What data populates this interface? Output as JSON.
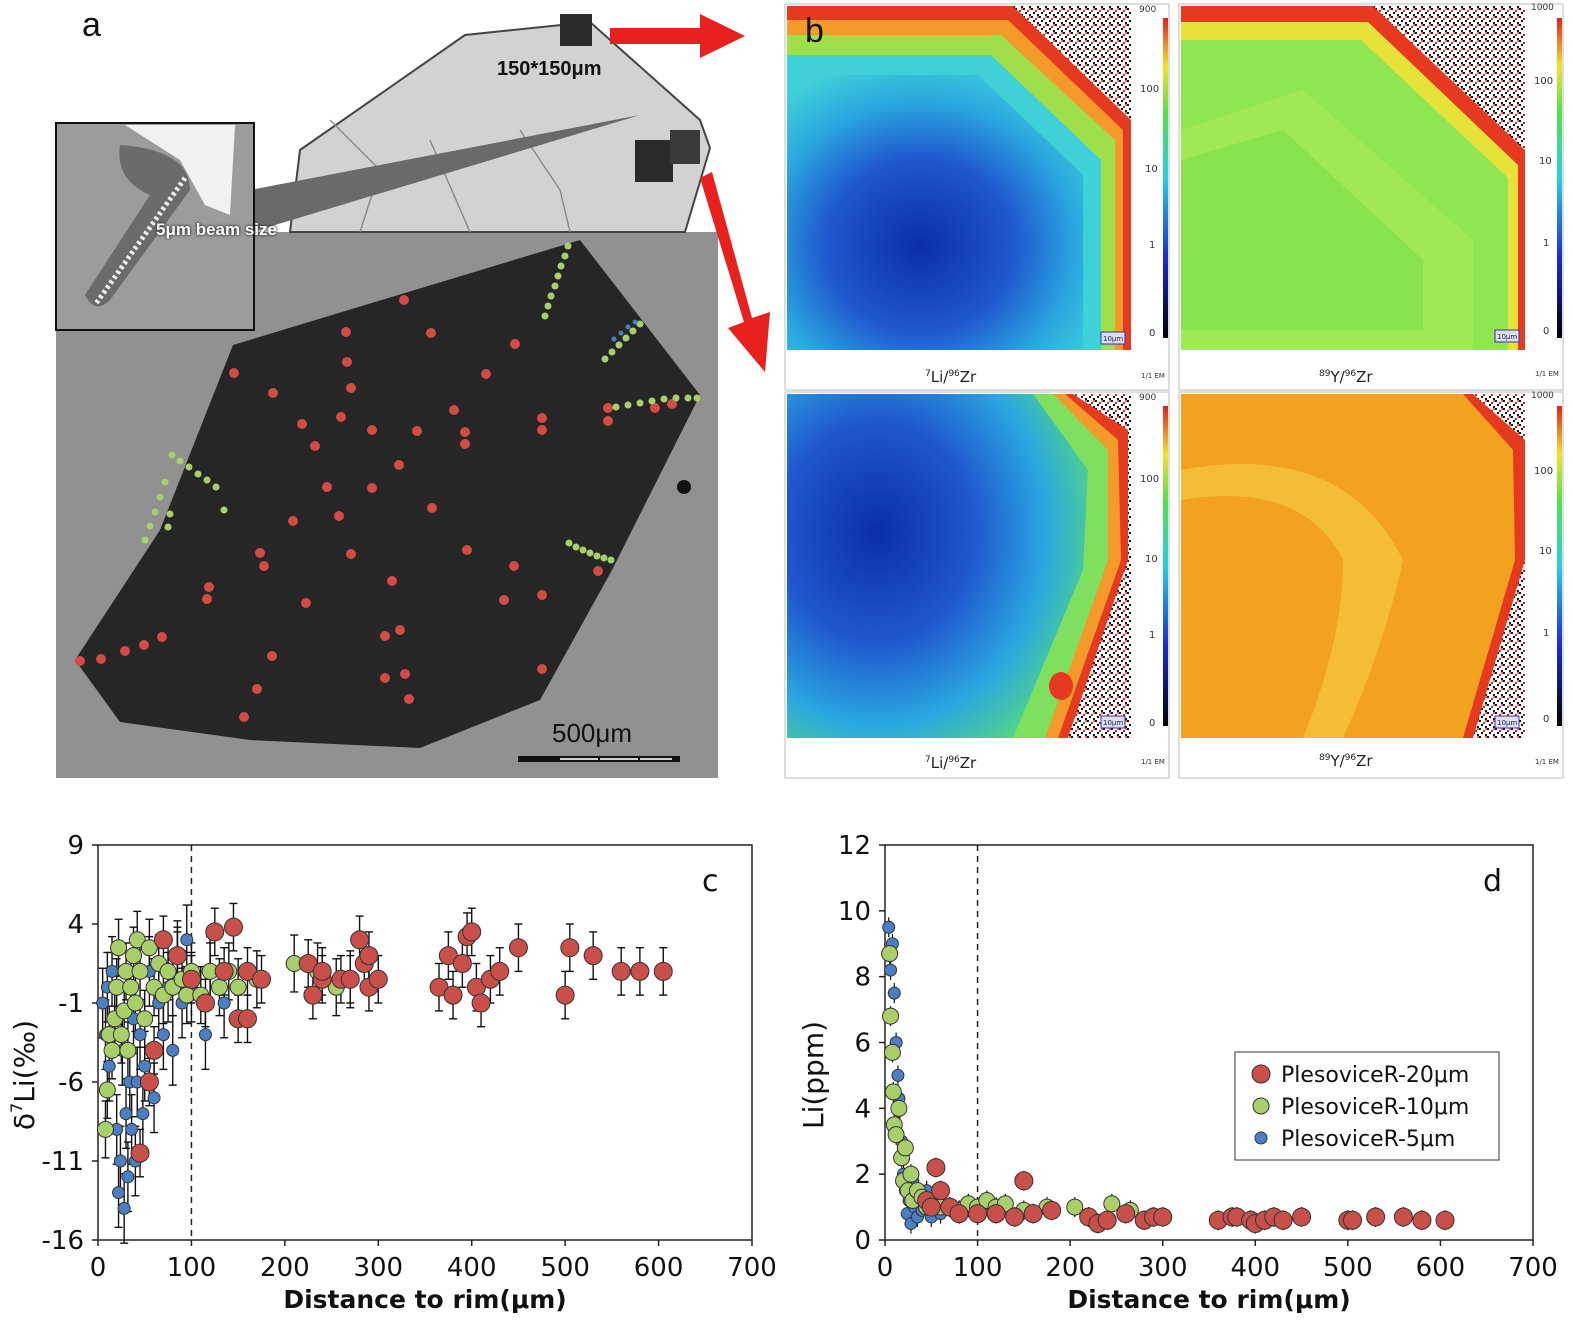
{
  "panel_a": {
    "letter": "a",
    "window_label": "150*150μm",
    "beam_label": "5μm beam size",
    "scale_label": "500μm"
  },
  "panel_b": {
    "letter": "b",
    "maps": [
      {
        "label": "7Li/96Zr",
        "iso": "7",
        "el": "Li/",
        "iso2": "96",
        "el2": "Zr",
        "scale_top": "900",
        "ticks": [
          "100",
          "10",
          "1",
          "0"
        ],
        "em": "1/1 EM",
        "bar": "10μm"
      },
      {
        "label": "89Y/96Zr",
        "iso": "89",
        "el": "Y/",
        "iso2": "96",
        "el2": "Zr",
        "scale_top": "1000",
        "ticks": [
          "100",
          "10",
          "1",
          "0"
        ],
        "em": "1/1 EM",
        "bar": "10μm"
      },
      {
        "label": "7Li/96Zr",
        "iso": "7",
        "el": "Li/",
        "iso2": "96",
        "el2": "Zr",
        "scale_top": "900",
        "ticks": [
          "100",
          "10",
          "1",
          "0"
        ],
        "em": "1/1 EM",
        "bar": "10μm"
      },
      {
        "label": "89Y/96Zr",
        "iso": "89",
        "el": "Y/",
        "iso2": "96",
        "el2": "Zr",
        "scale_top": "1000",
        "ticks": [
          "100",
          "10",
          "1",
          "0"
        ],
        "em": "1/1 EM",
        "bar": "10μm"
      }
    ]
  },
  "colors": {
    "red": "#c9504a",
    "green": "#a9cf6b",
    "blue": "#4a7fc4",
    "arrow": "#e8201e"
  },
  "chart_data": [
    {
      "panel": "c",
      "type": "scatter",
      "xlabel": "Distance to rim(μm)",
      "ylabel_prefix": "δ",
      "ylabel_sup": "7",
      "ylabel_rest": "Li(‰)",
      "xlim": [
        0,
        700
      ],
      "ylim": [
        -16,
        9
      ],
      "xticks": [
        "0",
        "100",
        "200",
        "300",
        "400",
        "500",
        "600",
        "700"
      ],
      "yticks": [
        "9",
        "4",
        "-1",
        "-6",
        "-11",
        "-16"
      ],
      "xtick_values": [
        0,
        100,
        200,
        300,
        400,
        500,
        600,
        700
      ],
      "ytick_values": [
        9,
        4,
        -1,
        -6,
        -11,
        -16
      ],
      "vline": 100,
      "series": [
        {
          "name": "PlesoviceR-20μm",
          "color": "#c9504a",
          "err": 1.5,
          "points": [
            [
              45,
              -10.5
            ],
            [
              55,
              -6
            ],
            [
              60,
              -4
            ],
            [
              70,
              3
            ],
            [
              85,
              2
            ],
            [
              100,
              0.5
            ],
            [
              115,
              -1
            ],
            [
              125,
              3.5
            ],
            [
              135,
              1
            ],
            [
              145,
              3.8
            ],
            [
              150,
              -2
            ],
            [
              160,
              -2
            ],
            [
              160,
              1
            ],
            [
              175,
              0.5
            ],
            [
              225,
              1.5
            ],
            [
              230,
              -0.5
            ],
            [
              240,
              0.5
            ],
            [
              240,
              1
            ],
            [
              260,
              0.5
            ],
            [
              270,
              0.5
            ],
            [
              280,
              3
            ],
            [
              285,
              1.5
            ],
            [
              290,
              2
            ],
            [
              290,
              0
            ],
            [
              300,
              0.5
            ],
            [
              365,
              0
            ],
            [
              375,
              2
            ],
            [
              380,
              -0.5
            ],
            [
              390,
              1.5
            ],
            [
              395,
              3.2
            ],
            [
              400,
              3.5
            ],
            [
              405,
              0
            ],
            [
              410,
              -1
            ],
            [
              420,
              0.5
            ],
            [
              430,
              1
            ],
            [
              450,
              2.5
            ],
            [
              500,
              -0.5
            ],
            [
              505,
              2.5
            ],
            [
              530,
              2
            ],
            [
              560,
              1
            ],
            [
              580,
              1
            ],
            [
              605,
              1
            ]
          ]
        },
        {
          "name": "PlesoviceR-10μm",
          "color": "#a9cf6b",
          "err": 1.8,
          "points": [
            [
              8,
              -9
            ],
            [
              10,
              -6.5
            ],
            [
              12,
              -3
            ],
            [
              15,
              -4
            ],
            [
              18,
              -2
            ],
            [
              20,
              0
            ],
            [
              22,
              2.5
            ],
            [
              25,
              -3
            ],
            [
              28,
              -1.5
            ],
            [
              30,
              1
            ],
            [
              32,
              -4
            ],
            [
              35,
              0
            ],
            [
              38,
              2
            ],
            [
              40,
              -1
            ],
            [
              42,
              3
            ],
            [
              45,
              1
            ],
            [
              50,
              -2
            ],
            [
              55,
              2.5
            ],
            [
              60,
              0
            ],
            [
              65,
              1.5
            ],
            [
              70,
              -0.5
            ],
            [
              75,
              1
            ],
            [
              80,
              0
            ],
            [
              85,
              2
            ],
            [
              90,
              0.5
            ],
            [
              95,
              -0.5
            ],
            [
              100,
              1
            ],
            [
              110,
              -0.5
            ],
            [
              120,
              1
            ],
            [
              130,
              0
            ],
            [
              140,
              1
            ],
            [
              150,
              0
            ],
            [
              170,
              0.5
            ],
            [
              210,
              1.5
            ],
            [
              235,
              1
            ],
            [
              255,
              0
            ],
            [
              270,
              0.5
            ]
          ]
        },
        {
          "name": "PlesoviceR-5μm",
          "color": "#4a7fc4",
          "err": 2.2,
          "points": [
            [
              5,
              -1
            ],
            [
              8,
              -3
            ],
            [
              10,
              0
            ],
            [
              12,
              -5
            ],
            [
              15,
              1
            ],
            [
              18,
              -2
            ],
            [
              20,
              -9
            ],
            [
              22,
              -13
            ],
            [
              24,
              -11
            ],
            [
              26,
              -4
            ],
            [
              28,
              -14
            ],
            [
              30,
              -8
            ],
            [
              32,
              -12
            ],
            [
              34,
              -6
            ],
            [
              36,
              -9
            ],
            [
              38,
              -2
            ],
            [
              40,
              -11
            ],
            [
              42,
              -6
            ],
            [
              45,
              -3
            ],
            [
              48,
              -8
            ],
            [
              50,
              -5
            ],
            [
              55,
              1
            ],
            [
              60,
              -7
            ],
            [
              65,
              -1
            ],
            [
              70,
              -3
            ],
            [
              75,
              0
            ],
            [
              80,
              -4
            ],
            [
              85,
              2
            ],
            [
              90,
              -1
            ],
            [
              95,
              3
            ],
            [
              100,
              0
            ],
            [
              115,
              -3
            ],
            [
              120,
              1
            ],
            [
              135,
              -1
            ]
          ]
        }
      ]
    },
    {
      "panel": "d",
      "type": "scatter",
      "xlabel": "Distance to rim(μm)",
      "ylabel": "Li(ppm)",
      "xlim": [
        0,
        700
      ],
      "ylim": [
        0,
        12
      ],
      "xticks": [
        "0",
        "100",
        "200",
        "300",
        "400",
        "500",
        "600",
        "700"
      ],
      "yticks": [
        "12",
        "10",
        "8",
        "6",
        "4",
        "2",
        "0"
      ],
      "xtick_values": [
        0,
        100,
        200,
        300,
        400,
        500,
        600,
        700
      ],
      "ytick_values": [
        12,
        10,
        8,
        6,
        4,
        2,
        0
      ],
      "vline": 100,
      "legend": [
        "PlesoviceR-20μm",
        "PlesoviceR-10μm",
        "PlesoviceR-5μm"
      ],
      "series": [
        {
          "name": "PlesoviceR-20μm",
          "color": "#c9504a",
          "points": [
            [
              45,
              1.2
            ],
            [
              50,
              1
            ],
            [
              55,
              2.2
            ],
            [
              60,
              1.5
            ],
            [
              70,
              1
            ],
            [
              80,
              0.8
            ],
            [
              100,
              0.8
            ],
            [
              120,
              0.8
            ],
            [
              140,
              0.7
            ],
            [
              150,
              1.8
            ],
            [
              160,
              0.8
            ],
            [
              180,
              0.9
            ],
            [
              220,
              0.7
            ],
            [
              230,
              0.5
            ],
            [
              240,
              0.6
            ],
            [
              260,
              0.8
            ],
            [
              280,
              0.6
            ],
            [
              290,
              0.7
            ],
            [
              300,
              0.7
            ],
            [
              360,
              0.6
            ],
            [
              375,
              0.7
            ],
            [
              380,
              0.7
            ],
            [
              395,
              0.6
            ],
            [
              400,
              0.5
            ],
            [
              410,
              0.6
            ],
            [
              420,
              0.7
            ],
            [
              430,
              0.6
            ],
            [
              450,
              0.7
            ],
            [
              500,
              0.6
            ],
            [
              505,
              0.6
            ],
            [
              530,
              0.7
            ],
            [
              560,
              0.7
            ],
            [
              580,
              0.6
            ],
            [
              605,
              0.6
            ]
          ]
        },
        {
          "name": "PlesoviceR-10μm",
          "color": "#a9cf6b",
          "points": [
            [
              5,
              8.7
            ],
            [
              6,
              6.8
            ],
            [
              8,
              5.7
            ],
            [
              9,
              4.5
            ],
            [
              10,
              3.5
            ],
            [
              12,
              3.2
            ],
            [
              15,
              4
            ],
            [
              18,
              2.5
            ],
            [
              20,
              1.8
            ],
            [
              22,
              2.8
            ],
            [
              25,
              1.5
            ],
            [
              28,
              2
            ],
            [
              30,
              1.2
            ],
            [
              35,
              1.5
            ],
            [
              40,
              1.3
            ],
            [
              45,
              1
            ],
            [
              50,
              1.2
            ],
            [
              60,
              1
            ],
            [
              70,
              1
            ],
            [
              80,
              0.9
            ],
            [
              90,
              1.1
            ],
            [
              100,
              1
            ],
            [
              110,
              1.2
            ],
            [
              120,
              1
            ],
            [
              130,
              1.1
            ],
            [
              150,
              0.9
            ],
            [
              175,
              1
            ],
            [
              205,
              1
            ],
            [
              245,
              1.1
            ],
            [
              265,
              0.9
            ]
          ]
        },
        {
          "name": "PlesoviceR-5μm",
          "color": "#4a7fc4",
          "points": [
            [
              4,
              9.5
            ],
            [
              6,
              8.2
            ],
            [
              8,
              9
            ],
            [
              10,
              7.5
            ],
            [
              12,
              6
            ],
            [
              14,
              5
            ],
            [
              15,
              4.3
            ],
            [
              16,
              4
            ],
            [
              18,
              3
            ],
            [
              20,
              2
            ],
            [
              22,
              1.5
            ],
            [
              24,
              0.8
            ],
            [
              26,
              1.2
            ],
            [
              28,
              0.5
            ],
            [
              30,
              1.8
            ],
            [
              32,
              1
            ],
            [
              35,
              0.7
            ],
            [
              38,
              1.3
            ],
            [
              40,
              0.9
            ],
            [
              45,
              1.5
            ],
            [
              50,
              0.7
            ],
            [
              55,
              1.2
            ],
            [
              60,
              0.8
            ],
            [
              70,
              1
            ],
            [
              80,
              0.9
            ],
            [
              90,
              1
            ]
          ]
        }
      ]
    }
  ]
}
